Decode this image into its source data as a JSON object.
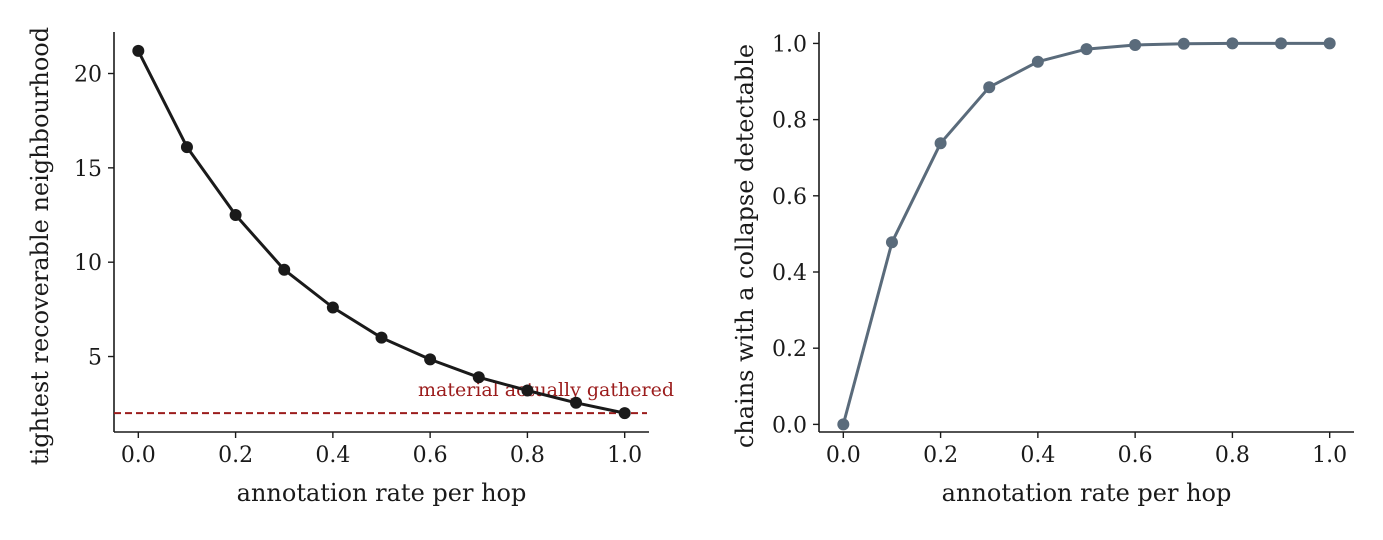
{
  "chart_data": [
    {
      "type": "line",
      "title": "",
      "xlabel": "annotation rate per hop",
      "ylabel": "tightest recoverable neighbourhood",
      "xlim": [
        -0.05,
        1.05
      ],
      "ylim": [
        1.0,
        22.2
      ],
      "xticks": [
        0.0,
        0.2,
        0.4,
        0.6,
        0.8,
        1.0
      ],
      "xtick_labels": [
        "0.0",
        "0.2",
        "0.4",
        "0.6",
        "0.8",
        "1.0"
      ],
      "yticks": [
        5,
        10,
        15,
        20
      ],
      "ytick_labels": [
        "5",
        "10",
        "15",
        "20"
      ],
      "grid": false,
      "series": [
        {
          "color": "#1a1a1a",
          "x": [
            0.0,
            0.1,
            0.2,
            0.3,
            0.4,
            0.5,
            0.6,
            0.7,
            0.8,
            0.9,
            1.0
          ],
          "y": [
            21.2,
            16.1,
            12.5,
            9.6,
            7.6,
            6.0,
            4.85,
            3.9,
            3.2,
            2.55,
            2.0
          ]
        }
      ],
      "reference_line": {
        "y": 2.0,
        "color": "#9b1c1c",
        "style": "dashed",
        "label": "material actually gathered"
      }
    },
    {
      "type": "line",
      "title": "",
      "xlabel": "annotation rate per hop",
      "ylabel": "chains with a collapse detectable",
      "xlim": [
        -0.05,
        1.05
      ],
      "ylim": [
        -0.02,
        1.03
      ],
      "xticks": [
        0.0,
        0.2,
        0.4,
        0.6,
        0.8,
        1.0
      ],
      "xtick_labels": [
        "0.0",
        "0.2",
        "0.4",
        "0.6",
        "0.8",
        "1.0"
      ],
      "yticks": [
        0.0,
        0.2,
        0.4,
        0.6,
        0.8,
        1.0
      ],
      "ytick_labels": [
        "0.0",
        "0.2",
        "0.4",
        "0.6",
        "0.8",
        "1.0"
      ],
      "grid": false,
      "series": [
        {
          "color": "#5a6b7b",
          "x": [
            0.0,
            0.1,
            0.2,
            0.3,
            0.4,
            0.5,
            0.6,
            0.7,
            0.8,
            0.9,
            1.0
          ],
          "y": [
            0.0,
            0.478,
            0.738,
            0.885,
            0.952,
            0.985,
            0.996,
            0.999,
            1.0,
            1.0,
            1.0
          ]
        }
      ]
    }
  ]
}
